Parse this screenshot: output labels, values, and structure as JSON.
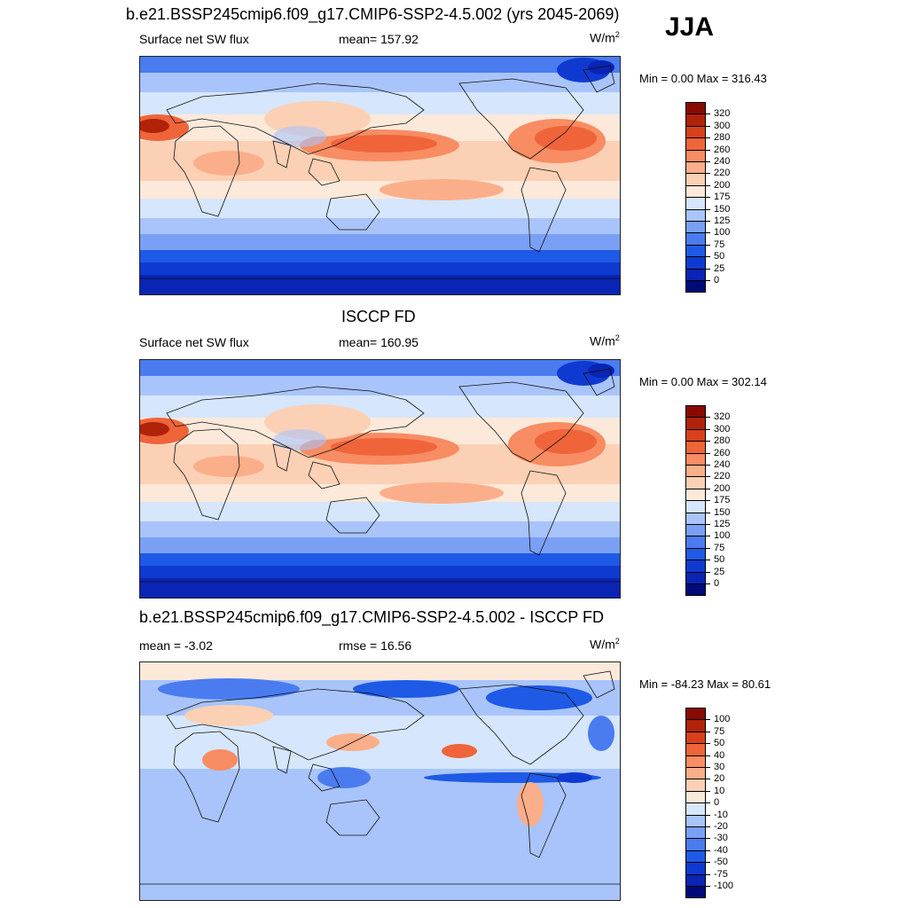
{
  "season": "JJA",
  "panels": [
    {
      "id": "model",
      "title": "b.e21.BSSP245cmip6.f09_g17.CMIP6-SSP2-4.5.002 (yrs 2045-2069)",
      "left_label": "Surface net SW flux",
      "center_label": "mean= 157.92",
      "units": "W/m",
      "units_sup": "2",
      "minmax": "Min =   0.00 Max = 316.43"
    },
    {
      "id": "obs",
      "title": "ISCCP FD",
      "left_label": "Surface net SW flux",
      "center_label": "mean= 160.95",
      "units": "W/m",
      "units_sup": "2",
      "minmax": "Min =   0.00 Max = 302.14"
    },
    {
      "id": "diff",
      "title": "b.e21.BSSP245cmip6.f09_g17.CMIP6-SSP2-4.5.002 - ISCCP FD",
      "left_label": "mean =  -3.02",
      "center_label": "rmse =  16.56",
      "units": "W/m",
      "units_sup": "2",
      "minmax": "Min = -84.23 Max =  80.61"
    }
  ],
  "chart_data": [
    {
      "type": "heatmap",
      "title": "b.e21.BSSP245cmip6.f09_g17.CMIP6-SSP2-4.5.002 (yrs 2045-2069)",
      "variable": "Surface net SW flux",
      "units": "W/m2",
      "mean": 157.92,
      "min": 0.0,
      "max": 316.43,
      "colorbar_levels": [
        0,
        25,
        50,
        75,
        100,
        125,
        150,
        175,
        200,
        220,
        240,
        260,
        280,
        300,
        320
      ],
      "colorbar_colors": [
        "#000a78",
        "#0a24b4",
        "#0f3ad2",
        "#1e5ae6",
        "#4a7cf0",
        "#7aa0f5",
        "#a8c4fa",
        "#d6e6fc",
        "#fde9da",
        "#fcd0b4",
        "#fbae8a",
        "#f88c62",
        "#f0643a",
        "#d8401c",
        "#b0220a",
        "#880a00"
      ]
    },
    {
      "type": "heatmap",
      "title": "ISCCP FD",
      "variable": "Surface net SW flux",
      "units": "W/m2",
      "mean": 160.95,
      "min": 0.0,
      "max": 302.14,
      "colorbar_levels": [
        0,
        25,
        50,
        75,
        100,
        125,
        150,
        175,
        200,
        220,
        240,
        260,
        280,
        300,
        320
      ],
      "colorbar_colors": [
        "#000a78",
        "#0a24b4",
        "#0f3ad2",
        "#1e5ae6",
        "#4a7cf0",
        "#7aa0f5",
        "#a8c4fa",
        "#d6e6fc",
        "#fde9da",
        "#fcd0b4",
        "#fbae8a",
        "#f88c62",
        "#f0643a",
        "#d8401c",
        "#b0220a",
        "#880a00"
      ]
    },
    {
      "type": "heatmap",
      "title": "b.e21.BSSP245cmip6.f09_g17.CMIP6-SSP2-4.5.002 - ISCCP FD",
      "units": "W/m2",
      "mean": -3.02,
      "rmse": 16.56,
      "min": -84.23,
      "max": 80.61,
      "colorbar_levels": [
        -100,
        -75,
        -50,
        -40,
        -30,
        -20,
        -10,
        0,
        10,
        20,
        30,
        40,
        50,
        75,
        100
      ],
      "colorbar_colors": [
        "#000a78",
        "#0a24b4",
        "#0f3ad2",
        "#1e5ae6",
        "#4a7cf0",
        "#7aa0f5",
        "#a8c4fa",
        "#d6e6fc",
        "#fde9da",
        "#fcd0b4",
        "#fbae8a",
        "#f88c62",
        "#f0643a",
        "#d8401c",
        "#b0220a",
        "#880a00"
      ]
    }
  ]
}
